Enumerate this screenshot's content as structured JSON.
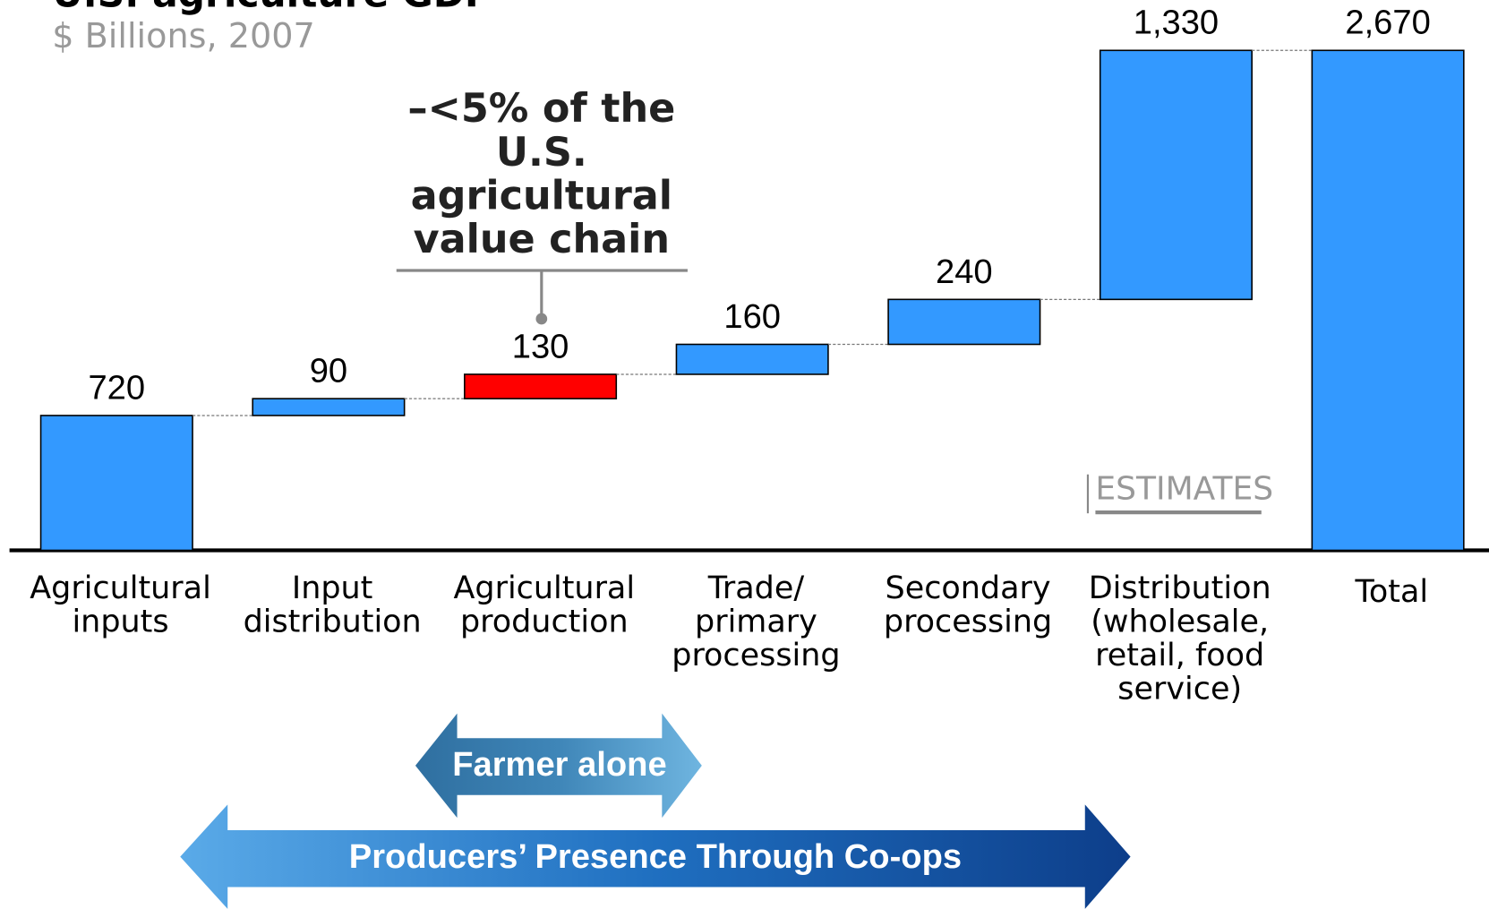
{
  "chart_data": {
    "type": "waterfall",
    "title": "U.S. agriculture GDP",
    "subtitle": "$ Billions, 2007",
    "categories": [
      "Agricultural\ninputs",
      "Input\ndistribution",
      "Agricultural\nproduction",
      "Trade/\nprimary\nprocessing",
      "Secondary\nprocessing",
      "Distribution\n(wholesale,\nretail, food\nservice)",
      "Total"
    ],
    "values": [
      720,
      90,
      130,
      160,
      240,
      1330,
      2670
    ],
    "value_labels": [
      "720",
      "90",
      "130",
      "160",
      "240",
      "1,330",
      "2,670"
    ],
    "colors": [
      "#3399ff",
      "#3399ff",
      "#ff0000",
      "#3399ff",
      "#3399ff",
      "#3399ff",
      "#3399ff"
    ],
    "annotation": [
      "–<5% of the",
      "U.S.",
      "agricultural",
      "value chain"
    ],
    "stamp": "ESTIMATES",
    "arrows": [
      "Farmer alone",
      "Producers’ Presence Through Co-ops"
    ]
  }
}
